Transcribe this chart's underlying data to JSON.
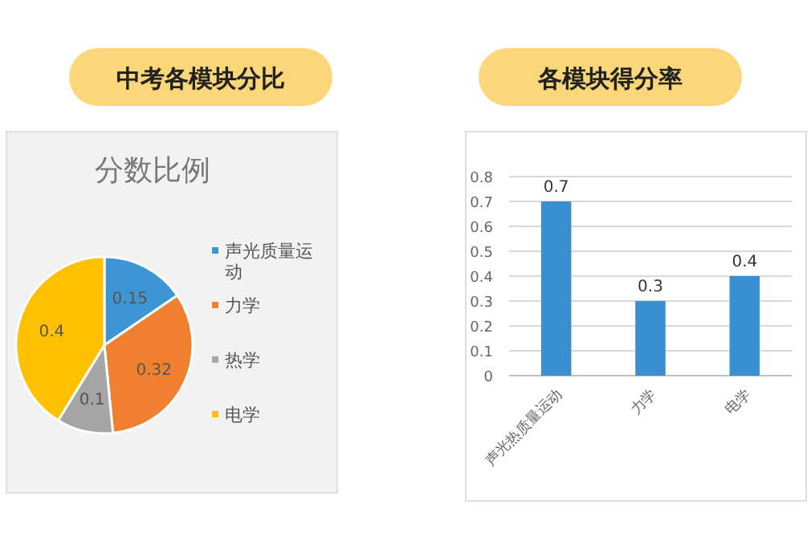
{
  "chart_data": [
    {
      "type": "pie",
      "title": "中考各模块分比",
      "subtitle": "分数比例",
      "categories": [
        "声光质量运动",
        "力学",
        "热学",
        "电学"
      ],
      "values": [
        0.15,
        0.32,
        0.1,
        0.4
      ],
      "colors": [
        "#3d95d4",
        "#f07f30",
        "#a5a5a5",
        "#ffc000"
      ],
      "data_labels": true,
      "legend": "right"
    },
    {
      "type": "bar",
      "title": "各模块得分率",
      "categories": [
        "声光热质量运动",
        "力学",
        "电学"
      ],
      "values": [
        0.7,
        0.3,
        0.4
      ],
      "color": "#3a8fd0",
      "ylim": [
        0,
        0.8
      ],
      "yticks": [
        0,
        0.1,
        0.2,
        0.3,
        0.4,
        0.5,
        0.6,
        0.7,
        0.8
      ],
      "grid": "y",
      "data_labels": true
    }
  ]
}
